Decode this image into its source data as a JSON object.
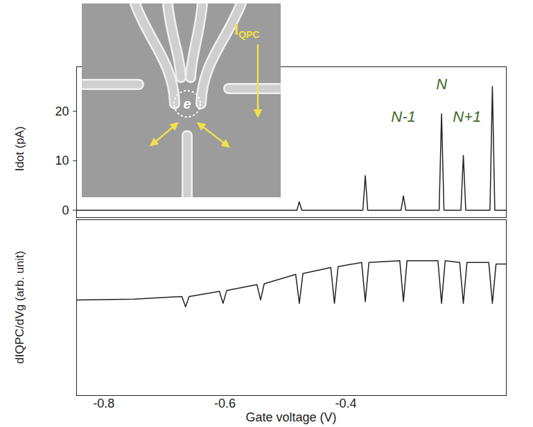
{
  "chart_data": [
    {
      "type": "line",
      "ylabel": "Idot (pA)",
      "xlim": [
        -0.845,
        -0.135
      ],
      "ylim": [
        -1.5,
        29
      ],
      "yticks": [
        0,
        10,
        20
      ],
      "tick_labels": "y",
      "color": "#222222",
      "x": [
        -0.845,
        -0.481,
        -0.477,
        -0.473,
        -0.372,
        -0.368,
        -0.364,
        -0.309,
        -0.305,
        -0.301,
        -0.246,
        -0.242,
        -0.238,
        -0.21,
        -0.206,
        -0.202,
        -0.162,
        -0.158,
        -0.154,
        -0.135
      ],
      "values": [
        0,
        0,
        1.7,
        0,
        0,
        7,
        0,
        0,
        2.9,
        0,
        0,
        19.5,
        0,
        0,
        11.1,
        0,
        0,
        25,
        0,
        0
      ],
      "annotations": [
        {
          "text": "N-1",
          "x": -0.305,
          "y": 18.8
        },
        {
          "text": "N",
          "x": -0.242,
          "y": 25.4
        },
        {
          "text": "N+1",
          "x": -0.2,
          "y": 18.8
        }
      ],
      "inset_labels": [
        "e",
        "IQPC"
      ]
    },
    {
      "type": "line",
      "xlabel": "Gate voltage (V)",
      "ylabel": "dIQPC/dVg (arb. unit)",
      "xlim": [
        -0.845,
        -0.135
      ],
      "xticks": [
        -0.8,
        -0.6,
        -0.4
      ],
      "ylim": [
        0,
        10.3
      ],
      "tick_labels": "x",
      "color": "#222222",
      "x": [
        -0.845,
        -0.75,
        -0.671,
        -0.665,
        -0.659,
        -0.609,
        -0.603,
        -0.597,
        -0.547,
        -0.541,
        -0.535,
        -0.483,
        -0.477,
        -0.471,
        -0.425,
        -0.419,
        -0.413,
        -0.374,
        -0.368,
        -0.362,
        -0.311,
        -0.305,
        -0.299,
        -0.248,
        -0.242,
        -0.236,
        -0.212,
        -0.206,
        -0.2,
        -0.164,
        -0.158,
        -0.152,
        -0.135
      ],
      "values": [
        5.6,
        5.65,
        5.8,
        5.2,
        5.8,
        6.1,
        5.4,
        6.15,
        6.5,
        5.6,
        6.55,
        7.1,
        5.4,
        7.15,
        7.5,
        5.4,
        7.55,
        7.8,
        5.5,
        7.8,
        7.9,
        5.5,
        7.9,
        7.9,
        5.4,
        7.9,
        7.8,
        5.4,
        7.8,
        7.8,
        5.4,
        7.7,
        7.7
      ]
    }
  ]
}
